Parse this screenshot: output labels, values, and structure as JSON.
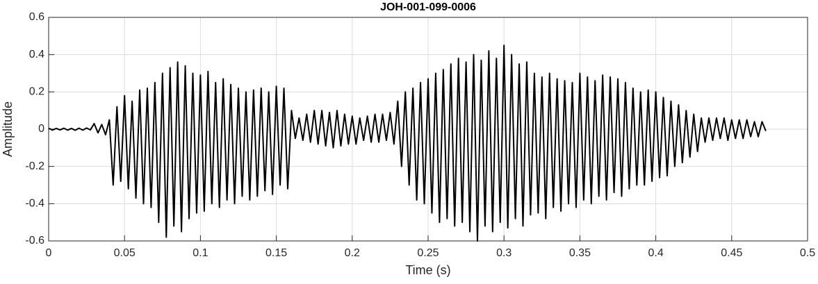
{
  "chart_data": {
    "type": "line",
    "title": "JOH-001-099-0006",
    "x_label": "Time (s)",
    "y_label": "Amplitude",
    "xlim": [
      0,
      0.5
    ],
    "ylim": [
      -0.6,
      0.6
    ],
    "xticks": [
      0,
      0.05,
      0.1,
      0.15,
      0.2,
      0.25,
      0.3,
      0.35,
      0.4,
      0.45,
      0.5
    ],
    "yticks": [
      -0.6,
      -0.4,
      -0.2,
      0,
      0.2,
      0.4,
      0.6
    ],
    "grid": true,
    "x": [
      0,
      0.0025,
      0.005,
      0.0075,
      0.01,
      0.0125,
      0.015,
      0.0175,
      0.02,
      0.0225,
      0.025,
      0.0275,
      0.03,
      0.0325,
      0.035,
      0.0375,
      0.04,
      0.0425,
      0.045,
      0.0475,
      0.05,
      0.0525,
      0.055,
      0.0575,
      0.06,
      0.0625,
      0.065,
      0.0675,
      0.07,
      0.0725,
      0.075,
      0.0775,
      0.08,
      0.0825,
      0.085,
      0.0875,
      0.09,
      0.0925,
      0.095,
      0.0975,
      0.1,
      0.1025,
      0.105,
      0.1075,
      0.11,
      0.1125,
      0.115,
      0.1175,
      0.12,
      0.1225,
      0.125,
      0.1275,
      0.13,
      0.1325,
      0.135,
      0.1375,
      0.14,
      0.1425,
      0.145,
      0.1475,
      0.15,
      0.1525,
      0.155,
      0.1575,
      0.16,
      0.1625,
      0.165,
      0.1675,
      0.17,
      0.1725,
      0.175,
      0.1775,
      0.18,
      0.1825,
      0.185,
      0.1875,
      0.19,
      0.1925,
      0.195,
      0.1975,
      0.2,
      0.2025,
      0.205,
      0.2075,
      0.21,
      0.2125,
      0.215,
      0.2175,
      0.22,
      0.2225,
      0.225,
      0.2275,
      0.23,
      0.2325,
      0.235,
      0.2375,
      0.24,
      0.2425,
      0.245,
      0.2475,
      0.25,
      0.2525,
      0.255,
      0.2575,
      0.26,
      0.2625,
      0.265,
      0.2675,
      0.27,
      0.2725,
      0.275,
      0.2775,
      0.28,
      0.2825,
      0.285,
      0.2875,
      0.29,
      0.2925,
      0.295,
      0.2975,
      0.3,
      0.3025,
      0.305,
      0.3075,
      0.31,
      0.3125,
      0.315,
      0.3175,
      0.32,
      0.3225,
      0.325,
      0.3275,
      0.33,
      0.3325,
      0.335,
      0.3375,
      0.34,
      0.3425,
      0.345,
      0.3475,
      0.35,
      0.3525,
      0.355,
      0.3575,
      0.36,
      0.3625,
      0.365,
      0.3675,
      0.37,
      0.3725,
      0.375,
      0.3775,
      0.38,
      0.3825,
      0.385,
      0.3875,
      0.39,
      0.3925,
      0.395,
      0.3975,
      0.4,
      0.4025,
      0.405,
      0.4075,
      0.41,
      0.4125,
      0.415,
      0.4175,
      0.42,
      0.4225,
      0.425,
      0.4275,
      0.43,
      0.4325,
      0.435,
      0.4375,
      0.44,
      0.4425,
      0.445,
      0.4475,
      0.45,
      0.4525,
      0.455,
      0.4575,
      0.46,
      0.4625,
      0.465,
      0.4675,
      0.47,
      0.4725
    ],
    "series": [
      {
        "color": "#000000",
        "values": [
          0.005,
          -0.005,
          0.004,
          -0.004,
          0.005,
          -0.005,
          0.004,
          -0.006,
          0.005,
          -0.005,
          0.006,
          -0.004,
          0.03,
          -0.02,
          0.025,
          -0.03,
          0.05,
          -0.3,
          0.12,
          -0.28,
          0.18,
          -0.32,
          0.15,
          -0.37,
          0.21,
          -0.4,
          0.22,
          -0.42,
          0.25,
          -0.5,
          0.3,
          -0.58,
          0.33,
          -0.52,
          0.36,
          -0.55,
          0.34,
          -0.48,
          0.3,
          -0.45,
          0.29,
          -0.44,
          0.31,
          -0.4,
          0.25,
          -0.42,
          0.27,
          -0.38,
          0.24,
          -0.4,
          0.22,
          -0.36,
          0.2,
          -0.38,
          0.21,
          -0.36,
          0.22,
          -0.33,
          0.2,
          -0.35,
          0.23,
          -0.3,
          0.22,
          -0.32,
          0.1,
          -0.05,
          0.06,
          -0.06,
          0.08,
          -0.07,
          0.1,
          -0.08,
          0.1,
          -0.09,
          0.09,
          -0.1,
          0.1,
          -0.09,
          0.08,
          -0.08,
          0.07,
          -0.08,
          0.06,
          -0.06,
          0.07,
          -0.07,
          0.08,
          -0.07,
          0.08,
          -0.06,
          0.09,
          -0.08,
          0.15,
          -0.2,
          0.2,
          -0.3,
          0.22,
          -0.38,
          0.25,
          -0.4,
          0.27,
          -0.45,
          0.3,
          -0.5,
          0.32,
          -0.48,
          0.35,
          -0.52,
          0.38,
          -0.5,
          0.36,
          -0.55,
          0.4,
          -0.6,
          0.37,
          -0.52,
          0.42,
          -0.55,
          0.38,
          -0.5,
          0.45,
          -0.53,
          0.4,
          -0.48,
          0.35,
          -0.52,
          0.36,
          -0.46,
          0.3,
          -0.45,
          0.28,
          -0.48,
          0.3,
          -0.42,
          0.27,
          -0.44,
          0.26,
          -0.4,
          0.25,
          -0.42,
          0.3,
          -0.38,
          0.28,
          -0.4,
          0.26,
          -0.36,
          0.29,
          -0.38,
          0.28,
          -0.34,
          0.27,
          -0.36,
          0.25,
          -0.32,
          0.22,
          -0.3,
          0.2,
          -0.3,
          0.21,
          -0.28,
          0.2,
          -0.26,
          0.17,
          -0.25,
          0.15,
          -0.2,
          0.13,
          -0.18,
          0.1,
          -0.15,
          0.08,
          -0.12,
          0.06,
          -0.07,
          0.06,
          -0.06,
          0.06,
          -0.05,
          0.06,
          -0.06,
          0.05,
          -0.05,
          0.05,
          -0.05,
          0.05,
          -0.04,
          0.04,
          -0.04,
          0.04,
          -0.01
        ]
      }
    ]
  }
}
